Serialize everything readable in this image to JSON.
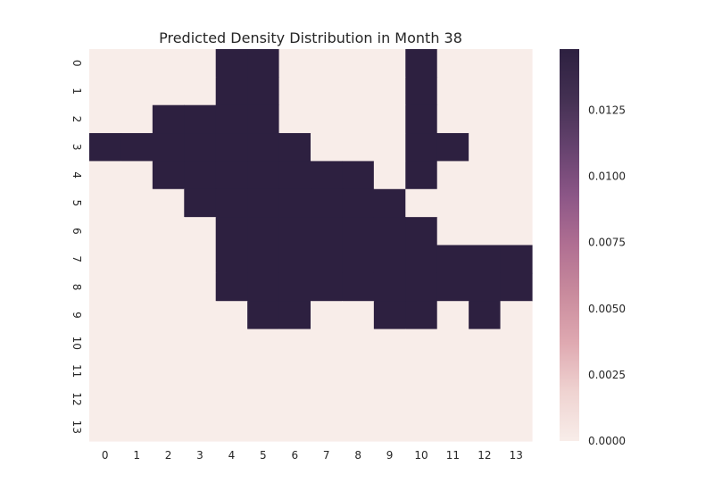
{
  "chart_data": {
    "type": "heatmap",
    "title": "Predicted Density Distribution in Month 38",
    "xlabel": "",
    "ylabel": "",
    "x_labels": [
      "0",
      "1",
      "2",
      "3",
      "4",
      "5",
      "6",
      "7",
      "8",
      "9",
      "10",
      "11",
      "12",
      "13"
    ],
    "y_labels": [
      "0",
      "1",
      "2",
      "3",
      "4",
      "5",
      "6",
      "7",
      "8",
      "9",
      "10",
      "11",
      "12",
      "13"
    ],
    "values": [
      [
        0,
        0,
        0,
        0,
        0.0148,
        0.0148,
        0,
        0,
        0,
        0,
        0.0148,
        0,
        0,
        0
      ],
      [
        0,
        0,
        0,
        0,
        0.0148,
        0.0148,
        0,
        0,
        0,
        0,
        0.0148,
        0,
        0,
        0
      ],
      [
        0,
        0,
        0.0148,
        0.0148,
        0.0148,
        0.0148,
        0,
        0,
        0,
        0,
        0.0148,
        0,
        0,
        0
      ],
      [
        0.0148,
        0.0148,
        0.0148,
        0.0148,
        0.0148,
        0.0148,
        0.0148,
        0,
        0,
        0,
        0.0148,
        0.0148,
        0,
        0
      ],
      [
        0,
        0,
        0.0148,
        0.0148,
        0.0148,
        0.0148,
        0.0148,
        0.0148,
        0.0148,
        0,
        0.0148,
        0,
        0,
        0
      ],
      [
        0,
        0,
        0,
        0.0148,
        0.0148,
        0.0148,
        0.0148,
        0.0148,
        0.0148,
        0.0148,
        0,
        0,
        0,
        0
      ],
      [
        0,
        0,
        0,
        0,
        0.0148,
        0.0148,
        0.0148,
        0.0148,
        0.0148,
        0.0148,
        0.0148,
        0,
        0,
        0
      ],
      [
        0,
        0,
        0,
        0,
        0.0148,
        0.0148,
        0.0148,
        0.0148,
        0.0148,
        0.0148,
        0.0148,
        0.0148,
        0.0148,
        0.0148
      ],
      [
        0,
        0,
        0,
        0,
        0.0148,
        0.0148,
        0.0148,
        0.0148,
        0.0148,
        0.0148,
        0.0148,
        0.0148,
        0.0148,
        0.0148
      ],
      [
        0,
        0,
        0,
        0,
        0,
        0.0148,
        0.0148,
        0,
        0,
        0.0148,
        0.0148,
        0,
        0.0148,
        0
      ],
      [
        0,
        0,
        0,
        0,
        0,
        0,
        0,
        0,
        0,
        0,
        0,
        0,
        0,
        0
      ],
      [
        0,
        0,
        0,
        0,
        0,
        0,
        0,
        0,
        0,
        0,
        0,
        0,
        0,
        0
      ],
      [
        0,
        0,
        0,
        0,
        0,
        0,
        0,
        0,
        0,
        0,
        0,
        0,
        0,
        0
      ],
      [
        0,
        0,
        0,
        0,
        0,
        0,
        0,
        0,
        0,
        0,
        0,
        0,
        0,
        0
      ]
    ],
    "colorbar": {
      "range": [
        0,
        0.0148
      ],
      "ticks": [
        0.0,
        0.0025,
        0.005,
        0.0075,
        0.01,
        0.0125
      ],
      "tick_labels": [
        "0.0000",
        "0.0025",
        "0.0050",
        "0.0075",
        "0.0100",
        "0.0125"
      ],
      "colormap": [
        "#f8ede9",
        "#efd3d1",
        "#dfa9b1",
        "#c98b9d",
        "#b06f92",
        "#8c5687",
        "#65426e",
        "#433052",
        "#2d2040"
      ]
    },
    "grid": false
  }
}
